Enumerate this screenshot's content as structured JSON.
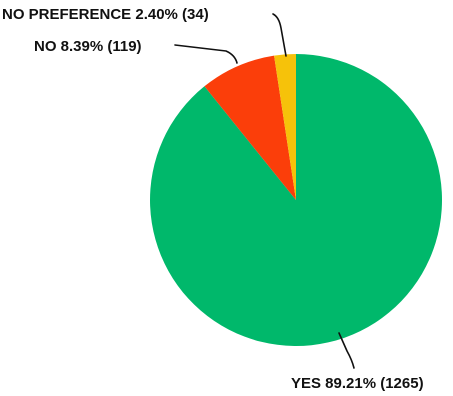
{
  "chart_data": {
    "type": "pie",
    "title": "",
    "start": "12 o'clock",
    "direction": "clockwise",
    "slices": [
      {
        "label": "YES 89.21% (1265)",
        "category": "YES",
        "percent": 89.21,
        "count": 1265,
        "color": "#00b86b"
      },
      {
        "label": "NO 8.39% (119)",
        "category": "NO",
        "percent": 8.39,
        "count": 119,
        "color": "#fb3e0a"
      },
      {
        "label": "NO PREFERENCE 2.40% (34)",
        "category": "NO PREFERENCE",
        "percent": 2.4,
        "count": 34,
        "color": "#f6c20a"
      }
    ]
  }
}
